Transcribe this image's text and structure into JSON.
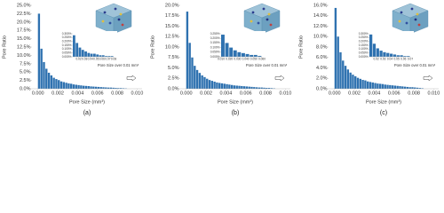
{
  "chart_data": [
    {
      "type": "histogram",
      "y_label": "Pore Ratio",
      "x_label": "Pore Size (mm³)",
      "caption": "(a)",
      "color": "#2f72b0",
      "bins": [
        0,
        0.00025,
        0.0005,
        0.00075,
        0.001,
        0.00125,
        0.0015,
        0.00175,
        0.002,
        0.00225,
        0.0025,
        0.00275,
        0.003,
        0.00325,
        0.0035,
        0.00375,
        0.004,
        0.00425,
        0.0045,
        0.00475,
        0.005,
        0.00525,
        0.0055,
        0.00575,
        0.006,
        0.00625,
        0.0065,
        0.00675,
        0.007,
        0.00725,
        0.0075,
        0.00775,
        0.008,
        0.00825,
        0.0085,
        0.00875,
        0.009
      ],
      "values": [
        22.5,
        12.0,
        8.0,
        6.0,
        4.8,
        4.0,
        3.3,
        2.9,
        2.6,
        2.2,
        2.0,
        1.8,
        1.6,
        1.5,
        1.3,
        1.2,
        1.1,
        1.0,
        0.9,
        0.85,
        0.8,
        0.7,
        0.65,
        0.6,
        0.55,
        0.5,
        0.45,
        0.4,
        0.35,
        0.35,
        0.3,
        0.25,
        0.2,
        0.2,
        0.15,
        0.1
      ],
      "xlim": [
        -0.0006,
        0.0105
      ],
      "ylim": [
        0,
        25
      ],
      "xticks": [
        {
          "value": 0,
          "label": "0.000"
        },
        {
          "value": 0.002,
          "label": "0.002"
        },
        {
          "value": 0.004,
          "label": "0.004"
        },
        {
          "value": 0.006,
          "label": "0.006"
        },
        {
          "value": 0.008,
          "label": "0.008"
        },
        {
          "value": 0.01,
          "label": "0.010"
        }
      ],
      "yticks": [
        {
          "value": 0,
          "label": "0.0%"
        },
        {
          "value": 2.5,
          "label": "2.5%"
        },
        {
          "value": 5,
          "label": "5.0%"
        },
        {
          "value": 7.5,
          "label": "7.5%"
        },
        {
          "value": 10,
          "label": "10.0%"
        },
        {
          "value": 12.5,
          "label": "12.5%"
        },
        {
          "value": 15,
          "label": "15.0%"
        },
        {
          "value": 17.5,
          "label": "17.5%"
        },
        {
          "value": 20,
          "label": "20.0%"
        },
        {
          "value": 22.5,
          "label": "22.5%"
        },
        {
          "value": 25,
          "label": "25.0%"
        }
      ],
      "inset": {
        "title": "Pore Size over 0.01 mm³",
        "bins": [
          0.01,
          0.015,
          0.02,
          0.025,
          0.03,
          0.035,
          0.04,
          0.045,
          0.05,
          0.055,
          0.06,
          0.065,
          0.07,
          0.075,
          0.08
        ],
        "values": [
          0.28,
          0.18,
          0.12,
          0.09,
          0.07,
          0.05,
          0.04,
          0.04,
          0.03,
          0.02,
          0.02,
          0.01,
          0.01,
          0.01
        ],
        "xlim": [
          0.01,
          0.08
        ],
        "ylim": [
          0,
          0.3
        ],
        "xticks": [
          0.02,
          0.03,
          0.04,
          0.05,
          0.06,
          0.07,
          0.08
        ],
        "yticks": [
          {
            "value": 0,
            "label": "0.000%"
          },
          {
            "value": 0.05,
            "label": "0.050%"
          },
          {
            "value": 0.1,
            "label": "0.100%"
          },
          {
            "value": 0.15,
            "label": "0.150%"
          },
          {
            "value": 0.2,
            "label": "0.200%"
          },
          {
            "value": 0.25,
            "label": "0.250%"
          },
          {
            "value": 0.3,
            "label": "0.300%"
          }
        ]
      }
    },
    {
      "type": "histogram",
      "y_label": "Pore Ratio",
      "x_label": "Pore Size (mm³)",
      "caption": "(b)",
      "color": "#2f72b0",
      "bins": [
        0,
        0.00025,
        0.0005,
        0.00075,
        0.001,
        0.00125,
        0.0015,
        0.00175,
        0.002,
        0.00225,
        0.0025,
        0.00275,
        0.003,
        0.00325,
        0.0035,
        0.00375,
        0.004,
        0.00425,
        0.0045,
        0.00475,
        0.005,
        0.00525,
        0.0055,
        0.00575,
        0.006,
        0.00625,
        0.0065,
        0.00675,
        0.007,
        0.00725,
        0.0075,
        0.00775,
        0.008,
        0.00825,
        0.0085,
        0.00875,
        0.009
      ],
      "values": [
        18.5,
        11.0,
        7.5,
        5.5,
        4.5,
        3.8,
        3.2,
        2.8,
        2.4,
        2.1,
        1.9,
        1.7,
        1.5,
        1.4,
        1.3,
        1.2,
        1.1,
        1.0,
        0.9,
        0.8,
        0.75,
        0.7,
        0.65,
        0.6,
        0.55,
        0.5,
        0.45,
        0.4,
        0.35,
        0.3,
        0.3,
        0.25,
        0.2,
        0.2,
        0.15,
        0.1
      ],
      "xlim": [
        -0.0006,
        0.0105
      ],
      "ylim": [
        0,
        20
      ],
      "xticks": [
        {
          "value": 0,
          "label": "0.000"
        },
        {
          "value": 0.002,
          "label": "0.002"
        },
        {
          "value": 0.004,
          "label": "0.004"
        },
        {
          "value": 0.006,
          "label": "0.006"
        },
        {
          "value": 0.008,
          "label": "0.008"
        },
        {
          "value": 0.01,
          "label": "0.010"
        }
      ],
      "yticks": [
        {
          "value": 0,
          "label": "0.0%"
        },
        {
          "value": 2.5,
          "label": "2.5%"
        },
        {
          "value": 5,
          "label": "5.0%"
        },
        {
          "value": 7.5,
          "label": "7.5%"
        },
        {
          "value": 10,
          "label": "10.0%"
        },
        {
          "value": 12.5,
          "label": "12.5%"
        },
        {
          "value": 15,
          "label": "15.0%"
        },
        {
          "value": 17.5,
          "label": "17.5%"
        },
        {
          "value": 20,
          "label": "20.0%"
        }
      ],
      "inset": {
        "title": "Pore Size over 0.01 mm³",
        "bins": [
          0.01,
          0.015,
          0.02,
          0.025,
          0.03,
          0.035,
          0.04,
          0.045,
          0.05,
          0.055,
          0.06
        ],
        "values": [
          0.24,
          0.15,
          0.1,
          0.07,
          0.05,
          0.04,
          0.03,
          0.02,
          0.02,
          0.01
        ],
        "xlim": [
          0.01,
          0.06
        ],
        "ylim": [
          0,
          0.25
        ],
        "xticks": [
          {
            "value": 0.01,
            "label": "0.010"
          },
          {
            "value": 0.02,
            "label": "0.020"
          },
          {
            "value": 0.03,
            "label": "0.030"
          },
          {
            "value": 0.04,
            "label": "0.040"
          },
          {
            "value": 0.05,
            "label": "0.050"
          },
          {
            "value": 0.06,
            "label": "0.060"
          }
        ],
        "yticks": [
          {
            "value": 0,
            "label": "0.000%"
          },
          {
            "value": 0.05,
            "label": "0.050%"
          },
          {
            "value": 0.1,
            "label": "0.100%"
          },
          {
            "value": 0.15,
            "label": "0.150%"
          },
          {
            "value": 0.2,
            "label": "0.200%"
          },
          {
            "value": 0.25,
            "label": "0.250%"
          }
        ]
      }
    },
    {
      "type": "histogram",
      "y_label": "Pore Ratio",
      "x_label": "Pore Size (mm³)",
      "caption": "(c)",
      "color": "#2f72b0",
      "bins": [
        0,
        0.00025,
        0.0005,
        0.00075,
        0.001,
        0.00125,
        0.0015,
        0.00175,
        0.002,
        0.00225,
        0.0025,
        0.00275,
        0.003,
        0.00325,
        0.0035,
        0.00375,
        0.004,
        0.00425,
        0.0045,
        0.00475,
        0.005,
        0.00525,
        0.0055,
        0.00575,
        0.006,
        0.00625,
        0.0065,
        0.00675,
        0.007,
        0.00725,
        0.0075,
        0.00775,
        0.008,
        0.00825,
        0.0085,
        0.00875,
        0.009
      ],
      "values": [
        15.5,
        10.0,
        7.0,
        5.4,
        4.4,
        3.7,
        3.1,
        2.7,
        2.4,
        2.1,
        1.9,
        1.7,
        1.6,
        1.4,
        1.3,
        1.2,
        1.1,
        1.0,
        0.95,
        0.9,
        0.8,
        0.75,
        0.7,
        0.65,
        0.6,
        0.55,
        0.5,
        0.45,
        0.4,
        0.35,
        0.3,
        0.3,
        0.25,
        0.2,
        0.15,
        0.1
      ],
      "xlim": [
        -0.0006,
        0.0105
      ],
      "ylim": [
        0,
        16
      ],
      "xticks": [
        {
          "value": 0,
          "label": "0.000"
        },
        {
          "value": 0.002,
          "label": "0.002"
        },
        {
          "value": 0.004,
          "label": "0.004"
        },
        {
          "value": 0.006,
          "label": "0.006"
        },
        {
          "value": 0.008,
          "label": "0.008"
        },
        {
          "value": 0.01,
          "label": "0.010"
        }
      ],
      "yticks": [
        {
          "value": 0,
          "label": "0.0%"
        },
        {
          "value": 2,
          "label": "2.0%"
        },
        {
          "value": 4,
          "label": "4.0%"
        },
        {
          "value": 6,
          "label": "6.0%"
        },
        {
          "value": 8,
          "label": "8.0%"
        },
        {
          "value": 10,
          "label": "10.0%"
        },
        {
          "value": 12,
          "label": "12.0%"
        },
        {
          "value": 14,
          "label": "14.0%"
        },
        {
          "value": 16,
          "label": "16.0%"
        }
      ],
      "inset": {
        "title": "Pore Size over 0.01 mm³",
        "bins": [
          0.01,
          0.015,
          0.02,
          0.025,
          0.03,
          0.035,
          0.04,
          0.045,
          0.05,
          0.055,
          0.06,
          0.065,
          0.07
        ],
        "values": [
          0.29,
          0.17,
          0.11,
          0.08,
          0.06,
          0.05,
          0.04,
          0.03,
          0.02,
          0.02,
          0.01,
          0.01
        ],
        "xlim": [
          0.01,
          0.07
        ],
        "ylim": [
          0,
          0.3
        ],
        "xticks": [
          0.02,
          0.03,
          0.04,
          0.05,
          0.06,
          0.07
        ],
        "yticks": [
          {
            "value": 0,
            "label": "0.000%"
          },
          {
            "value": 0.05,
            "label": "0.050%"
          },
          {
            "value": 0.1,
            "label": "0.100%"
          },
          {
            "value": 0.15,
            "label": "0.150%"
          },
          {
            "value": 0.2,
            "label": "0.200%"
          },
          {
            "value": 0.25,
            "label": "0.250%"
          },
          {
            "value": 0.3,
            "label": "0.300%"
          }
        ]
      }
    }
  ]
}
